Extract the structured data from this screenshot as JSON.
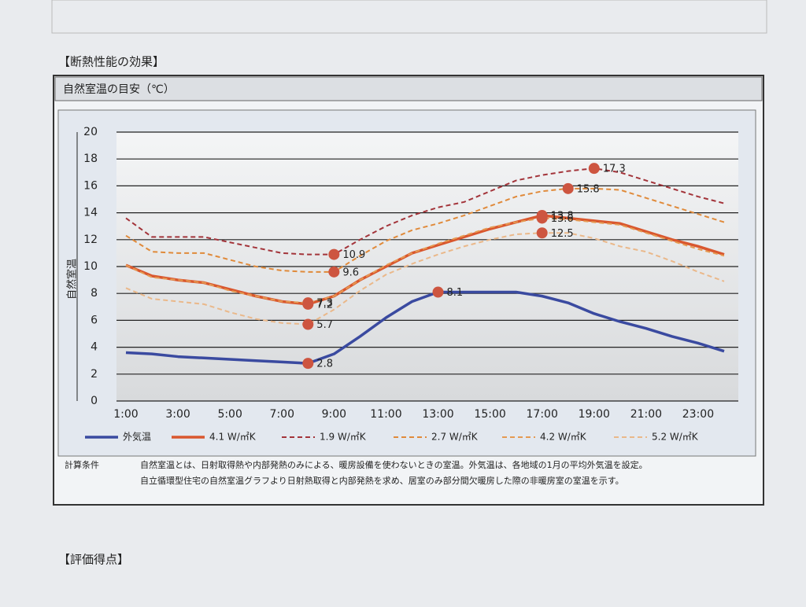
{
  "section_title": "【断熱性能の効果】",
  "footer_title": "【評価得点】",
  "conditions": {
    "label": "計算条件",
    "lines": [
      "自然室温とは、日射取得熱や内部発熱のみによる、暖房設備を使わないときの室温。外気温は、各地域の1月の平均外気温を設定。",
      "自立循環型住宅の自然室温グラフより日射熱取得と内部発熱を求め、居室のみ部分間欠暖房した際の非暖房室の室温を示す。"
    ]
  },
  "chart_data": {
    "type": "line",
    "title": "自然室温の目安（℃）",
    "y_label": "自然室温",
    "categories": [
      "1:00",
      null,
      "3:00",
      null,
      "5:00",
      null,
      "7:00",
      null,
      "9:00",
      null,
      "11:00",
      null,
      "13:00",
      null,
      "15:00",
      null,
      "17:00",
      null,
      "19:00",
      null,
      "21:00",
      null,
      "23:00",
      null
    ],
    "ylim": [
      0,
      20
    ],
    "yticks": [
      0,
      2,
      4,
      6,
      8,
      10,
      12,
      14,
      16,
      18,
      20
    ],
    "grid": true,
    "marker_color": "#cd5540",
    "series": [
      {
        "name": "外気温",
        "color": "#3a4aa0",
        "dash": false,
        "width": 3.5,
        "values": [
          3.6,
          3.5,
          3.3,
          3.2,
          3.1,
          3.0,
          2.9,
          2.8,
          3.5,
          4.8,
          6.2,
          7.4,
          8.1,
          8.1,
          8.1,
          8.1,
          7.8,
          7.3,
          6.5,
          5.9,
          5.4,
          4.8,
          4.3,
          3.7
        ],
        "value_labels": [
          null,
          null,
          null,
          null,
          null,
          null,
          null,
          "2.8",
          null,
          null,
          null,
          null,
          "8.1",
          null,
          null,
          null,
          null,
          null,
          null,
          null,
          null,
          null,
          null,
          null
        ]
      },
      {
        "name": "4.1 W/㎡K",
        "color": "#d9572e",
        "dash": false,
        "width": 3.5,
        "values": [
          10.1,
          9.3,
          9.0,
          8.8,
          8.3,
          7.8,
          7.4,
          7.2,
          7.8,
          9.0,
          10.0,
          11.0,
          11.6,
          12.2,
          12.8,
          13.3,
          13.8,
          13.6,
          13.4,
          13.2,
          12.6,
          12.0,
          11.5,
          10.9
        ],
        "value_labels": [
          null,
          null,
          null,
          null,
          null,
          null,
          null,
          "7.2",
          null,
          null,
          null,
          null,
          null,
          null,
          null,
          null,
          "13.8",
          null,
          null,
          null,
          null,
          null,
          null,
          null
        ]
      },
      {
        "name": "1.9 W/㎡K",
        "color": "#a3343a",
        "dash": true,
        "width": 2,
        "values": [
          13.6,
          12.2,
          12.2,
          12.2,
          11.8,
          11.4,
          11.0,
          10.9,
          10.9,
          12.0,
          13.0,
          13.8,
          14.4,
          14.8,
          15.6,
          16.4,
          16.8,
          17.1,
          17.3,
          17.0,
          16.4,
          15.8,
          15.2,
          14.7
        ],
        "value_labels": [
          null,
          null,
          null,
          null,
          null,
          null,
          null,
          null,
          "10.9",
          null,
          null,
          null,
          null,
          null,
          null,
          null,
          null,
          null,
          "17.3",
          null,
          null,
          null,
          null,
          null
        ]
      },
      {
        "name": "2.7 W/㎡K",
        "color": "#e08a3a",
        "dash": true,
        "width": 2,
        "values": [
          12.3,
          11.1,
          11.0,
          11.0,
          10.5,
          10.0,
          9.7,
          9.6,
          9.6,
          10.8,
          11.9,
          12.7,
          13.2,
          13.8,
          14.5,
          15.2,
          15.6,
          15.8,
          15.8,
          15.7,
          15.1,
          14.5,
          13.9,
          13.3
        ],
        "value_labels": [
          null,
          null,
          null,
          null,
          null,
          null,
          null,
          null,
          "9.6",
          null,
          null,
          null,
          null,
          null,
          null,
          null,
          null,
          "15.8",
          null,
          null,
          null,
          null,
          null,
          null
        ]
      },
      {
        "name": "4.2 W/㎡K",
        "color": "#e59a52",
        "dash": true,
        "width": 2,
        "values": [
          10.1,
          9.2,
          9.0,
          8.8,
          8.2,
          7.8,
          7.4,
          7.3,
          7.8,
          9.0,
          10.1,
          11.0,
          11.7,
          12.3,
          12.9,
          13.3,
          13.6,
          13.5,
          13.3,
          13.1,
          12.5,
          11.9,
          11.3,
          10.8
        ],
        "value_labels": [
          null,
          null,
          null,
          null,
          null,
          null,
          null,
          "7.3",
          null,
          null,
          null,
          null,
          null,
          null,
          null,
          null,
          "13.6",
          null,
          null,
          null,
          null,
          null,
          null,
          null
        ]
      },
      {
        "name": "5.2 W/㎡K",
        "color": "#eab88a",
        "dash": true,
        "width": 2,
        "values": [
          8.4,
          7.6,
          7.4,
          7.2,
          6.6,
          6.1,
          5.8,
          5.7,
          6.8,
          8.2,
          9.4,
          10.2,
          10.9,
          11.5,
          12.0,
          12.4,
          12.5,
          12.5,
          12.1,
          11.5,
          11.1,
          10.4,
          9.6,
          8.9
        ],
        "value_labels": [
          null,
          null,
          null,
          null,
          null,
          null,
          null,
          "5.7",
          null,
          null,
          null,
          null,
          null,
          null,
          null,
          null,
          "12.5",
          null,
          null,
          null,
          null,
          null,
          null,
          null
        ]
      }
    ]
  }
}
